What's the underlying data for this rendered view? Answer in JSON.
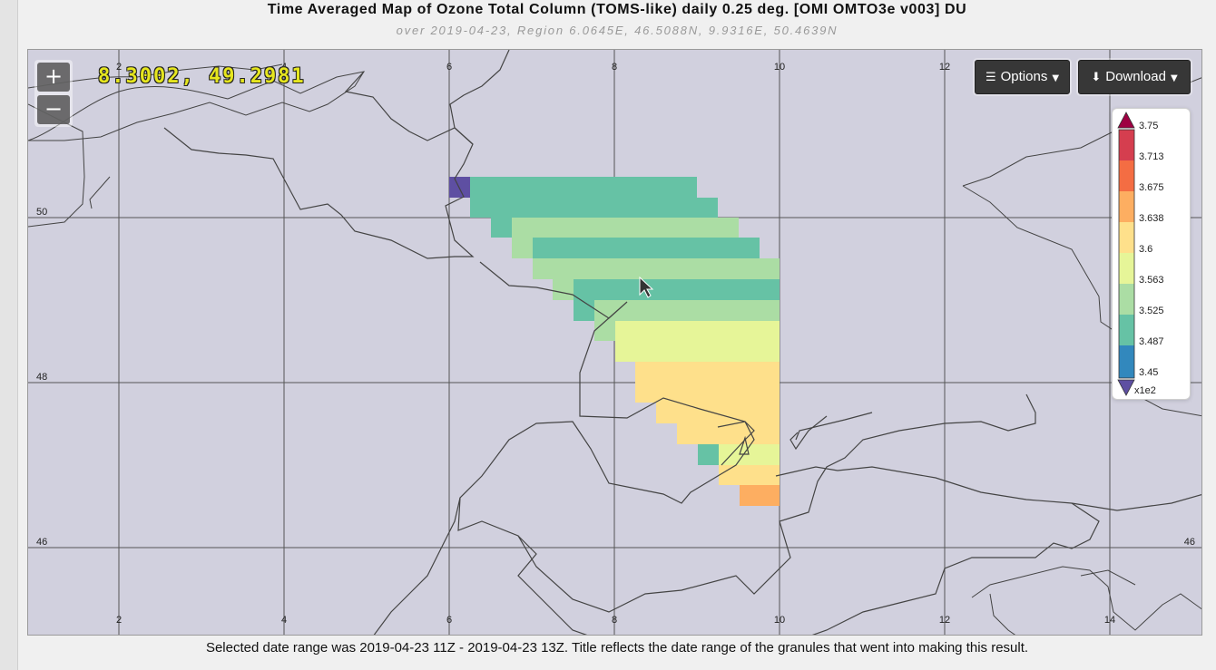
{
  "header": {
    "title": "Time Averaged Map of Ozone Total Column (TOMS-like) daily 0.25 deg. [OMI OMTO3e v003] DU",
    "subtitle": "over 2019-04-23, Region 6.0645E, 46.5088N, 9.9316E, 50.4639N"
  },
  "map": {
    "background_color": "#d1d0de",
    "lon_ticks": [
      "2",
      "4",
      "6",
      "8",
      "10",
      "12",
      "14"
    ],
    "lat_ticks": [
      "50",
      "48",
      "46"
    ],
    "cursor_readout": "8.3002, 49.2981"
  },
  "controls": {
    "zoom_in_label": "+",
    "zoom_out_label": "−",
    "options_label": "Options",
    "options_icon": "hamburger-icon",
    "download_label": "Download",
    "download_icon": "download-icon"
  },
  "legend": {
    "ticks": [
      "3.75",
      "3.713",
      "3.675",
      "3.638",
      "3.6",
      "3.563",
      "3.525",
      "3.487",
      "3.45"
    ],
    "scale_factor": "x1e2",
    "colors_top_to_bottom": [
      "#d53e4f",
      "#f46d43",
      "#fdae61",
      "#fee08b",
      "#e6f598",
      "#abdda4",
      "#66c2a5",
      "#3288bd"
    ],
    "over_color": "#9e0142",
    "under_color": "#5e4fa2"
  },
  "footer": {
    "note": "Selected date range was 2019-04-23 11Z - 2019-04-23 13Z. Title reflects the date range of the granules that went into making this result."
  }
}
